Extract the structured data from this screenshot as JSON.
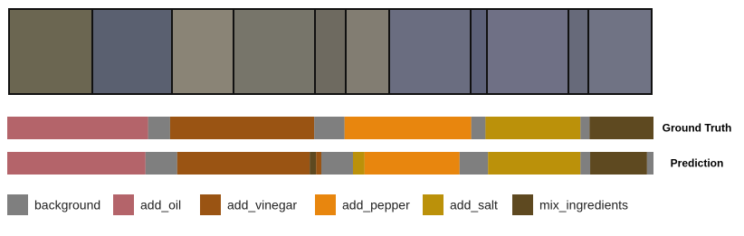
{
  "chart_data": {
    "type": "timeline",
    "classes": [
      {
        "name": "background",
        "color": "#7f7f7f"
      },
      {
        "name": "add_oil",
        "color": "#b4646a"
      },
      {
        "name": "add_vinegar",
        "color": "#9a5413"
      },
      {
        "name": "add_pepper",
        "color": "#e8860e"
      },
      {
        "name": "add_salt",
        "color": "#bb910a"
      },
      {
        "name": "mix_ingredients",
        "color": "#5e4920"
      }
    ],
    "xlim": [
      0,
      100
    ],
    "rows": [
      {
        "name": "Ground Truth",
        "segments": [
          {
            "class": 1,
            "start": 0,
            "end": 21.8
          },
          {
            "class": 0,
            "start": 21.8,
            "end": 25.2
          },
          {
            "class": 2,
            "start": 25.2,
            "end": 47.5
          },
          {
            "class": 0,
            "start": 47.5,
            "end": 52.2
          },
          {
            "class": 3,
            "start": 52.2,
            "end": 71.8
          },
          {
            "class": 0,
            "start": 71.8,
            "end": 74.0
          },
          {
            "class": 4,
            "start": 74.0,
            "end": 88.7
          },
          {
            "class": 0,
            "start": 88.7,
            "end": 90.1
          },
          {
            "class": 5,
            "start": 90.1,
            "end": 100
          }
        ]
      },
      {
        "name": "Prediction",
        "segments": [
          {
            "class": 1,
            "start": 0,
            "end": 21.4
          },
          {
            "class": 0,
            "start": 21.4,
            "end": 26.3
          },
          {
            "class": 2,
            "start": 26.3,
            "end": 46.8
          },
          {
            "class": 5,
            "start": 46.8,
            "end": 47.8
          },
          {
            "class": 2,
            "start": 47.8,
            "end": 48.6
          },
          {
            "class": 0,
            "start": 48.6,
            "end": 53.5
          },
          {
            "class": 4,
            "start": 53.5,
            "end": 55.3
          },
          {
            "class": 3,
            "start": 55.3,
            "end": 70.0
          },
          {
            "class": 0,
            "start": 70.0,
            "end": 74.4
          },
          {
            "class": 4,
            "start": 74.4,
            "end": 88.7
          },
          {
            "class": 0,
            "start": 88.7,
            "end": 90.2
          },
          {
            "class": 5,
            "start": 90.2,
            "end": 99.0
          },
          {
            "class": 0,
            "start": 99.0,
            "end": 100
          }
        ]
      }
    ]
  }
}
